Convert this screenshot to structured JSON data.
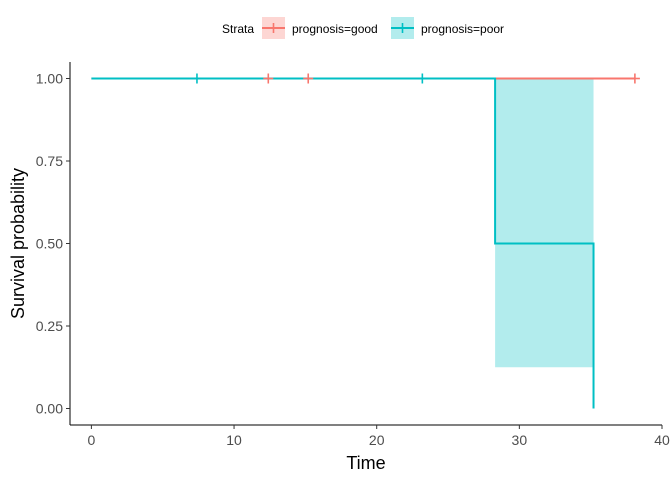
{
  "chart_data": {
    "type": "line",
    "subtype": "kaplan-meier survival curve",
    "xlabel": "Time",
    "ylabel": "Survival probability",
    "xlim": [
      -1.5,
      40
    ],
    "ylim": [
      -0.05,
      1.05
    ],
    "x_ticks": [
      0,
      10,
      20,
      30,
      40
    ],
    "y_ticks": [
      0.0,
      0.25,
      0.5,
      0.75,
      1.0
    ],
    "x_tick_labels": [
      "0",
      "10",
      "20",
      "30",
      "40"
    ],
    "y_tick_labels": [
      "0.00",
      "0.25",
      "0.50",
      "0.75",
      "1.00"
    ],
    "grid": false,
    "legend": {
      "title": "Strata",
      "position": "top"
    },
    "series": [
      {
        "name": "prognosis=good",
        "color": "#F8766D",
        "steps": [
          [
            0,
            1.0
          ],
          [
            38.1,
            1.0
          ]
        ],
        "censor_times": [
          12.4,
          15.2,
          38.1
        ],
        "censor_values": [
          1.0,
          1.0,
          1.0
        ],
        "confidence_band": []
      },
      {
        "name": "prognosis=poor",
        "color": "#00BFC4",
        "steps": [
          [
            0,
            1.0
          ],
          [
            28.3,
            0.5
          ],
          [
            35.2,
            0.0
          ]
        ],
        "censor_times": [
          7.4,
          23.2
        ],
        "censor_values": [
          1.0,
          1.0
        ],
        "confidence_band": [
          {
            "x_start": 28.3,
            "x_end": 35.2,
            "lower": 0.125,
            "upper": 1.0
          }
        ]
      }
    ]
  }
}
